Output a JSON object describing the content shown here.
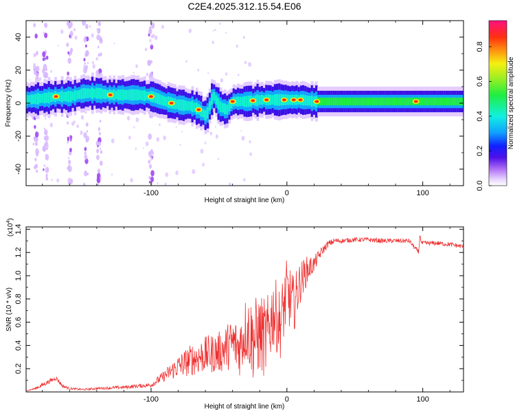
{
  "title": "C2E4.2025.312.15.54.E06",
  "chart_data": [
    {
      "type": "heatmap",
      "name": "spectrogram",
      "xlabel": "Height of straight line (km)",
      "ylabel": "Frequency (Hz)",
      "xlim": [
        -192,
        130
      ],
      "ylim": [
        -50,
        50
      ],
      "xticks": [
        -100,
        0,
        100
      ],
      "xtick_labels": [
        "-100",
        "0",
        "100"
      ],
      "yticks": [
        -40,
        -20,
        0,
        20,
        40
      ],
      "ytick_labels": [
        "-40",
        "-20",
        "0",
        "20",
        "40"
      ],
      "colorbar": {
        "label": "Normalized spectral amplitude",
        "range": [
          0,
          0.95
        ],
        "ticks": [
          0.0,
          0.2,
          0.4,
          0.6,
          0.8
        ],
        "tick_labels": [
          "0.0",
          "0.2",
          "0.4",
          "0.6",
          "0.8"
        ],
        "colors": [
          "#ffffff",
          "#d9b8ff",
          "#9a3df2",
          "#4010e8",
          "#1030ff",
          "#10a8ff",
          "#10f0e0",
          "#20ee40",
          "#a8ee20",
          "#f4f010",
          "#ff9010",
          "#ff3010",
          "#ff1080"
        ]
      },
      "ridge": {
        "x": [
          -192,
          -180,
          -170,
          -160,
          -150,
          -140,
          -130,
          -120,
          -110,
          -100,
          -90,
          -80,
          -70,
          -65,
          -60,
          -55,
          -50,
          -45,
          -40,
          -30,
          -20,
          -10,
          0,
          10,
          20,
          130
        ],
        "y": [
          2,
          3,
          4,
          4,
          6,
          6,
          5,
          5,
          5,
          4,
          1,
          -1,
          -2,
          -4,
          -8,
          5,
          -2,
          -4,
          1,
          1,
          2,
          2,
          2,
          2,
          1,
          1
        ]
      },
      "hotspots_x": [
        -170,
        -130,
        -100,
        -85,
        -65,
        -40,
        -25,
        -15,
        -2,
        5,
        10,
        22,
        95
      ],
      "noise_columns_x": [
        -185,
        -178,
        -160,
        -148,
        -138,
        -100
      ]
    },
    {
      "type": "line",
      "name": "snr",
      "xlabel": "Height of straight line (km)",
      "ylabel": "SNR (10 * v/v)",
      "scale_label": "(x10",
      "scale_exp": "4",
      "scale_close": ")",
      "xlim": [
        -192,
        130
      ],
      "ylim": [
        0,
        1.42
      ],
      "xticks": [
        -100,
        0,
        100
      ],
      "xtick_labels": [
        "-100",
        "0",
        "100"
      ],
      "yticks": [
        0.2,
        0.4,
        0.6,
        0.8,
        1.0,
        1.2,
        1.4
      ],
      "ytick_labels": [
        "0.2",
        "0.4",
        "0.6",
        "0.8",
        "1.0",
        "1.2",
        "1.4"
      ],
      "color": "#ee3030",
      "series": [
        {
          "name": "SNR",
          "x": [
            -192,
            -185,
            -180,
            -175,
            -170,
            -165,
            -160,
            -150,
            -140,
            -120,
            -100,
            -90,
            -80,
            -70,
            -60,
            -50,
            -40,
            -35,
            -30,
            -25,
            -20,
            -15,
            -10,
            -5,
            0,
            5,
            10,
            15,
            20,
            25,
            30,
            35,
            40,
            50,
            60,
            70,
            80,
            90,
            97,
            98,
            99,
            100,
            110,
            120,
            130
          ],
          "y": [
            0.01,
            0.03,
            0.06,
            0.09,
            0.12,
            0.05,
            0.03,
            0.02,
            0.03,
            0.04,
            0.06,
            0.14,
            0.22,
            0.28,
            0.32,
            0.34,
            0.42,
            0.38,
            0.55,
            0.45,
            0.5,
            0.45,
            0.7,
            0.58,
            0.85,
            0.75,
            0.95,
            1.05,
            1.1,
            1.2,
            1.27,
            1.3,
            1.3,
            1.31,
            1.31,
            1.3,
            1.3,
            1.3,
            1.2,
            1.36,
            1.28,
            1.28,
            1.28,
            1.27,
            1.25
          ],
          "noise": [
            0.004,
            0.01,
            0.02,
            0.02,
            0.02,
            0.015,
            0.01,
            0.008,
            0.01,
            0.015,
            0.02,
            0.05,
            0.1,
            0.14,
            0.16,
            0.18,
            0.22,
            0.25,
            0.3,
            0.35,
            0.35,
            0.35,
            0.32,
            0.3,
            0.3,
            0.25,
            0.18,
            0.12,
            0.07,
            0.04,
            0.03,
            0.025,
            0.02,
            0.02,
            0.02,
            0.02,
            0.02,
            0.02,
            0.02,
            0.02,
            0.02,
            0.02,
            0.02,
            0.02,
            0.02
          ]
        }
      ]
    }
  ]
}
